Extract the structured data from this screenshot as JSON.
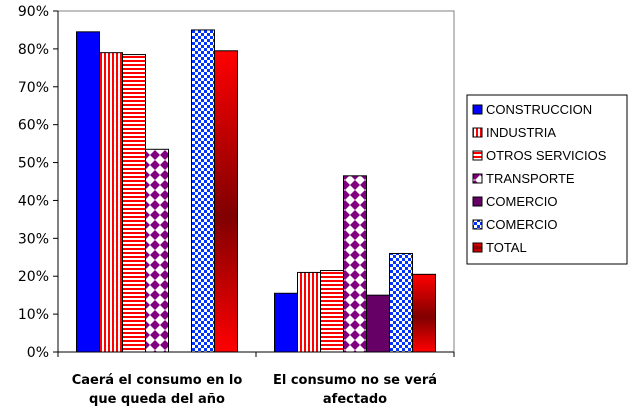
{
  "chart_data": {
    "type": "bar",
    "title": "",
    "xlabel": "",
    "ylabel": "",
    "ylim": [
      0,
      90
    ],
    "yticks": [
      "0%",
      "10%",
      "20%",
      "30%",
      "40%",
      "50%",
      "60%",
      "70%",
      "80%",
      "90%"
    ],
    "categories": [
      [
        "Caerá el consumo en lo",
        "que queda del año"
      ],
      [
        "El consumo no se verá",
        "afectado"
      ]
    ],
    "series": [
      {
        "name": "CONSTRUCCION",
        "values": [
          84.5,
          15.5
        ],
        "color": "#0000ff",
        "pattern": "solid"
      },
      {
        "name": "INDUSTRIA",
        "values": [
          79,
          21
        ],
        "color": "#ff0000",
        "pattern": "vstripes"
      },
      {
        "name": "OTROS SERVICIOS",
        "values": [
          78.5,
          21.5
        ],
        "color": "#ff0000",
        "pattern": "hstripes"
      },
      {
        "name": "TRANSPORTE",
        "values": [
          53.5,
          46.5
        ],
        "color": "#800080",
        "pattern": "diamonds"
      },
      {
        "name": "COMERCIO",
        "values": [
          null,
          15
        ],
        "color": "#660066",
        "pattern": "solid"
      },
      {
        "name": "COMERCIO",
        "values": [
          85,
          26
        ],
        "color": "#99ccff",
        "pattern": "checker"
      },
      {
        "name": "TOTAL",
        "values": [
          79.5,
          20.5
        ],
        "color": "#ff0000",
        "pattern": "gradient"
      }
    ],
    "grid": false,
    "legend": "right"
  }
}
